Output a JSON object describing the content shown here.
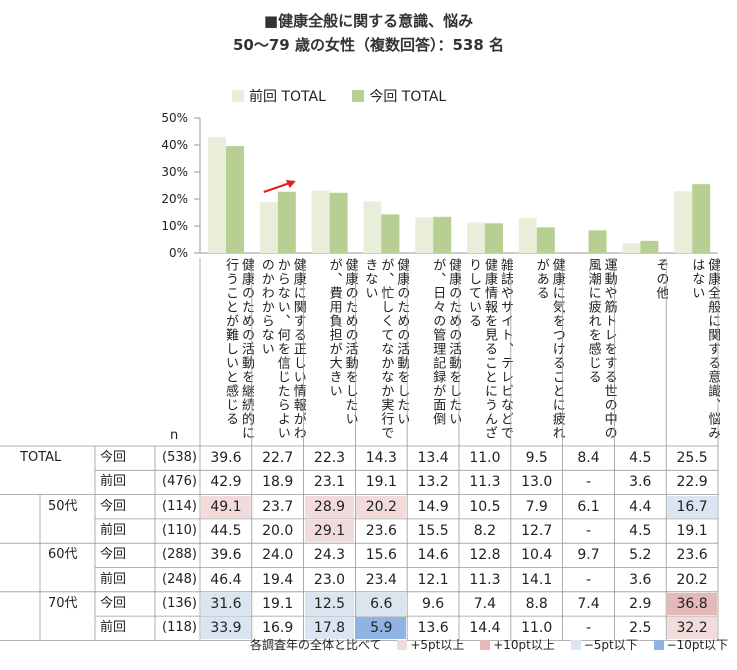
{
  "title": "■健康全般に関する意識、悩み",
  "subtitle": "50～79 歳の女性（複数回答）：538 名",
  "colors": {
    "prev": "#e9eedb",
    "curr": "#b7cf92",
    "plus5": "#f2dcdb",
    "plus10": "#e6b9b8",
    "minus5": "#dbe5f1",
    "minus10": "#8db4e2"
  },
  "chart_data": {
    "type": "bar",
    "ylim": [
      0,
      50
    ],
    "yticks": [
      "50%",
      "40%",
      "30%",
      "20%",
      "10%",
      "0%"
    ],
    "categories": [
      "健康のための活動を継続的に行うことが難しいと感じる",
      "健康に関する正しい情報がわからない、何を信じたらよいのかわからない",
      "健康のための活動をしたいが、費用負担が大きい",
      "健康のための活動をしたいが、忙しくてなかなか実行できない",
      "健康のための活動をしたいが、日々の管理記録が面倒",
      "雑誌やサイト、テレビなどで健康情報を見ることにうんざりしている",
      "健康に気をつけることに疲れがある",
      "運動や筋トレをする世の中の風潮に疲れを感じる",
      "その他",
      "健康全般に関する意識、悩みはない"
    ],
    "series": [
      {
        "name": "前回 TOTAL",
        "values": [
          42.9,
          18.9,
          23.1,
          19.1,
          13.2,
          11.3,
          13.0,
          null,
          3.6,
          22.9
        ]
      },
      {
        "name": "今回 TOTAL",
        "values": [
          39.6,
          22.7,
          22.3,
          14.3,
          13.4,
          11.0,
          9.5,
          8.4,
          4.5,
          25.5
        ]
      }
    ],
    "n_header": "n",
    "table": [
      {
        "group": "TOTAL",
        "label": "今回",
        "n": "(538)",
        "values": [
          "39.6",
          "22.7",
          "22.3",
          "14.3",
          "13.4",
          "11.0",
          "9.5",
          "8.4",
          "4.5",
          "25.5"
        ],
        "flags": [
          "",
          "",
          "",
          "",
          "",
          "",
          "",
          "",
          "",
          ""
        ]
      },
      {
        "group": "",
        "label": "前回",
        "n": "(476)",
        "values": [
          "42.9",
          "18.9",
          "23.1",
          "19.1",
          "13.2",
          "11.3",
          "13.0",
          "-",
          "3.6",
          "22.9"
        ],
        "flags": [
          "",
          "",
          "",
          "",
          "",
          "",
          "",
          "",
          "",
          ""
        ]
      },
      {
        "group": "50代",
        "label": "今回",
        "n": "(114)",
        "values": [
          "49.1",
          "23.7",
          "28.9",
          "20.2",
          "14.9",
          "10.5",
          "7.9",
          "6.1",
          "4.4",
          "16.7"
        ],
        "flags": [
          "plus5",
          "",
          "plus5",
          "plus5",
          "",
          "",
          "",
          "",
          "",
          "minus5"
        ]
      },
      {
        "group": "",
        "label": "前回",
        "n": "(110)",
        "values": [
          "44.5",
          "20.0",
          "29.1",
          "23.6",
          "15.5",
          "8.2",
          "12.7",
          "-",
          "4.5",
          "19.1"
        ],
        "flags": [
          "",
          "",
          "plus5",
          "",
          "",
          "",
          "",
          "",
          "",
          ""
        ]
      },
      {
        "group": "60代",
        "label": "今回",
        "n": "(288)",
        "values": [
          "39.6",
          "24.0",
          "24.3",
          "15.6",
          "14.6",
          "12.8",
          "10.4",
          "9.7",
          "5.2",
          "23.6"
        ],
        "flags": [
          "",
          "",
          "",
          "",
          "",
          "",
          "",
          "",
          "",
          ""
        ]
      },
      {
        "group": "",
        "label": "前回",
        "n": "(248)",
        "values": [
          "46.4",
          "19.4",
          "23.0",
          "23.4",
          "12.1",
          "11.3",
          "14.1",
          "-",
          "3.6",
          "20.2"
        ],
        "flags": [
          "",
          "",
          "",
          "",
          "",
          "",
          "",
          "",
          "",
          ""
        ]
      },
      {
        "group": "70代",
        "label": "今回",
        "n": "(136)",
        "values": [
          "31.6",
          "19.1",
          "12.5",
          "6.6",
          "9.6",
          "7.4",
          "8.8",
          "7.4",
          "2.9",
          "36.8"
        ],
        "flags": [
          "minus5",
          "",
          "minus5",
          "minus5",
          "",
          "",
          "",
          "",
          "",
          "plus10"
        ]
      },
      {
        "group": "",
        "label": "前回",
        "n": "(118)",
        "values": [
          "33.9",
          "16.9",
          "17.8",
          "5.9",
          "13.6",
          "14.4",
          "11.0",
          "-",
          "2.5",
          "32.2"
        ],
        "flags": [
          "minus5",
          "",
          "minus5",
          "minus10",
          "",
          "",
          "",
          "",
          "",
          "plus5"
        ]
      }
    ]
  },
  "footnote": {
    "lead": "各調査年の全体と比べて",
    "plus5": "+5pt以上",
    "plus10": "+10pt以上",
    "minus5": "−5pt以下",
    "minus10": "−10pt以下"
  }
}
